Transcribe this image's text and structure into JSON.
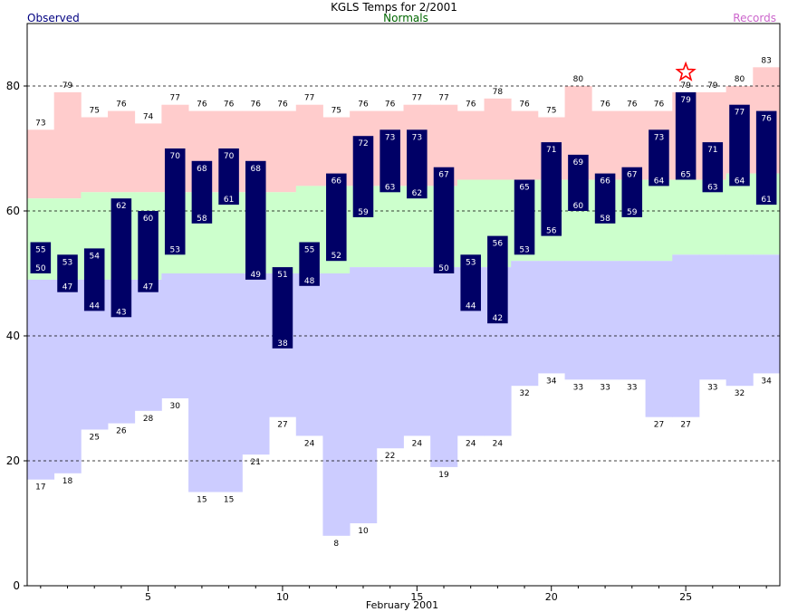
{
  "chart_data": {
    "type": "bar",
    "title": "KGLS Temps for 2/2001",
    "legend": {
      "observed": "Observed",
      "normals": "Normals",
      "records": "Records"
    },
    "xlabel": "February 2001",
    "ylabel": "",
    "xlim": [
      0.5,
      28.5
    ],
    "ylim": [
      0,
      90
    ],
    "yticks": [
      0,
      20,
      40,
      60,
      80
    ],
    "xticks": [
      5,
      10,
      15,
      20,
      25
    ],
    "gridlines": [
      20,
      40,
      60,
      80
    ],
    "colors": {
      "observed": "#000066",
      "normal": "#ccffcc",
      "record_high": "#ffcccc",
      "record_low": "#ccccff",
      "observed_text": "#000080",
      "normals_text": "#006600",
      "records_text": "#cc66cc",
      "marker": "#ff0000"
    },
    "days": [
      1,
      2,
      3,
      4,
      5,
      6,
      7,
      8,
      9,
      10,
      11,
      12,
      13,
      14,
      15,
      16,
      17,
      18,
      19,
      20,
      21,
      22,
      23,
      24,
      25,
      26,
      27,
      28
    ],
    "observed_high": [
      55,
      53,
      54,
      62,
      60,
      70,
      68,
      70,
      68,
      51,
      55,
      66,
      72,
      73,
      73,
      67,
      53,
      56,
      65,
      71,
      69,
      66,
      67,
      73,
      79,
      71,
      77,
      76
    ],
    "observed_low": [
      50,
      47,
      44,
      43,
      47,
      53,
      58,
      61,
      49,
      38,
      48,
      52,
      59,
      63,
      62,
      50,
      44,
      42,
      53,
      56,
      60,
      58,
      59,
      64,
      65,
      63,
      64,
      61
    ],
    "normal_high": [
      62,
      62,
      63,
      63,
      63,
      63,
      63,
      63,
      63,
      63,
      64,
      64,
      64,
      64,
      64,
      64,
      65,
      65,
      65,
      65,
      65,
      65,
      65,
      65,
      65,
      65,
      66,
      66
    ],
    "normal_low": [
      49,
      49,
      49,
      49,
      49,
      50,
      50,
      50,
      50,
      50,
      50,
      50,
      51,
      51,
      51,
      51,
      51,
      51,
      52,
      52,
      52,
      52,
      52,
      52,
      53,
      53,
      53,
      53
    ],
    "record_high": [
      73,
      79,
      75,
      76,
      74,
      77,
      76,
      76,
      76,
      76,
      77,
      75,
      76,
      76,
      77,
      77,
      76,
      78,
      76,
      75,
      80,
      76,
      76,
      76,
      79,
      79,
      80,
      83
    ],
    "record_low": [
      17,
      18,
      25,
      26,
      28,
      30,
      15,
      15,
      21,
      27,
      24,
      8,
      10,
      22,
      24,
      19,
      24,
      24,
      32,
      34,
      33,
      33,
      33,
      27,
      27,
      33,
      32,
      34
    ],
    "record_set_days": [
      25
    ]
  }
}
